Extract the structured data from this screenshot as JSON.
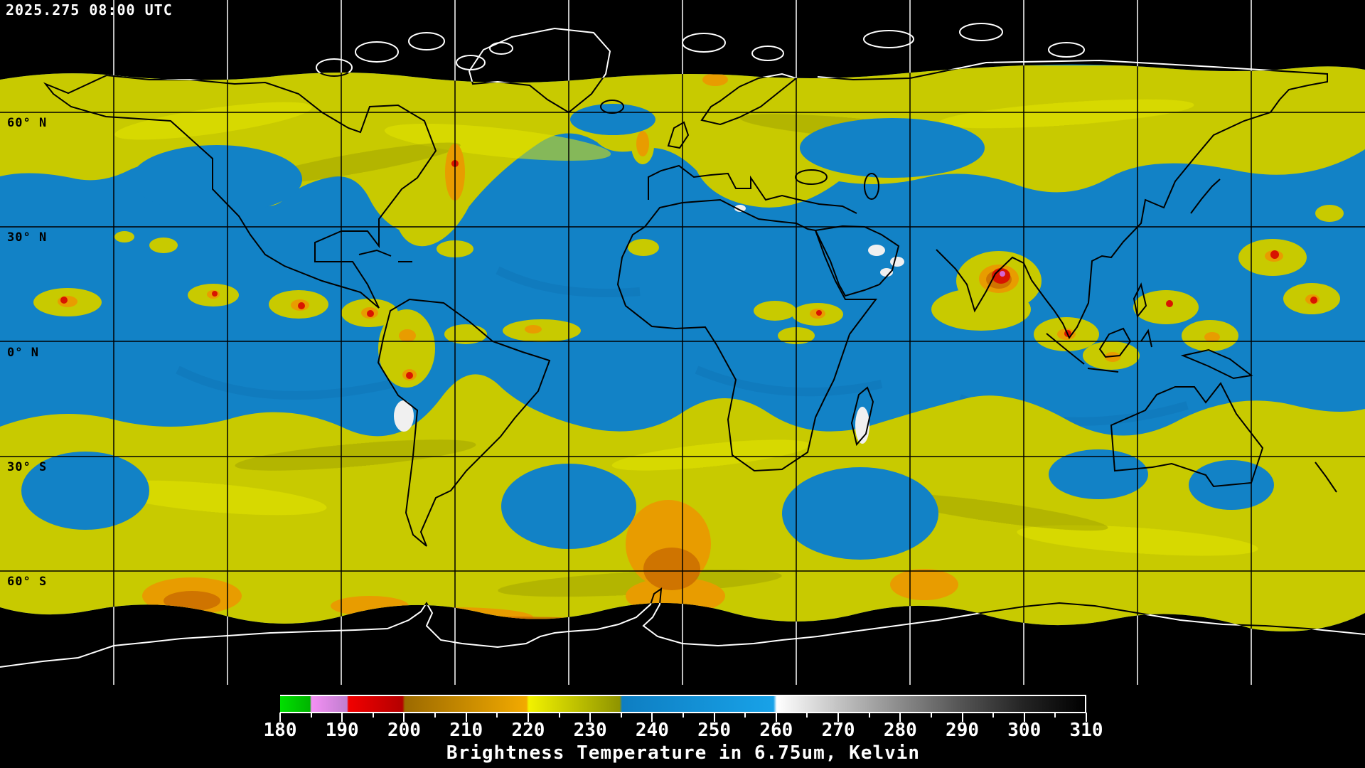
{
  "header": {
    "timestamp": "2025.275 08:00 UTC"
  },
  "map": {
    "latitude_labels": [
      "60° N",
      "30° N",
      "0° N",
      "30° S",
      "60° S"
    ],
    "grid": {
      "lon_step_deg": 30,
      "lat_step_deg": 30
    },
    "colors": {
      "background": "#000000",
      "ocean": "#1282c6",
      "ocean_deep": "#0d6fae",
      "cloud_yellow": "#c8ca00",
      "cloud_yellow_bright": "#e4e600",
      "cloud_olive": "#9ea000",
      "cloud_orange": "#e89c00",
      "cloud_orange_deep": "#c86a00",
      "cloud_red": "#d81400",
      "cloud_violet": "#d464d4",
      "warm_white": "#f0f0f0",
      "coast_on_data": "#000000",
      "coast_on_space": "#ffffff",
      "grid_on_data": "#000000",
      "grid_on_space": "#ffffff"
    }
  },
  "colorbar": {
    "title": "Brightness Temperature in 6.75um, Kelvin",
    "min": 180,
    "max": 310,
    "major_step": 10,
    "minor_step": 5,
    "tick_labels": [
      "180",
      "190",
      "200",
      "210",
      "220",
      "230",
      "240",
      "250",
      "260",
      "270",
      "280",
      "290",
      "300",
      "310"
    ],
    "stops": [
      [
        0,
        "#00e000"
      ],
      [
        3.7,
        "#00b400"
      ],
      [
        3.9,
        "#f490f4"
      ],
      [
        8.3,
        "#c07ecf"
      ],
      [
        8.5,
        "#f20000"
      ],
      [
        15.2,
        "#b40000"
      ],
      [
        15.5,
        "#9c6a00"
      ],
      [
        30.6,
        "#f2aa00"
      ],
      [
        30.9,
        "#f2f200"
      ],
      [
        42.2,
        "#8f9400"
      ],
      [
        42.5,
        "#0e7ec2"
      ],
      [
        61.3,
        "#18a2e8"
      ],
      [
        61.7,
        "#ffffff"
      ],
      [
        69.2,
        "#c4c4c4"
      ],
      [
        76.9,
        "#8c8c8c"
      ],
      [
        84.6,
        "#545454"
      ],
      [
        92.3,
        "#242424"
      ],
      [
        100,
        "#000000"
      ]
    ]
  }
}
